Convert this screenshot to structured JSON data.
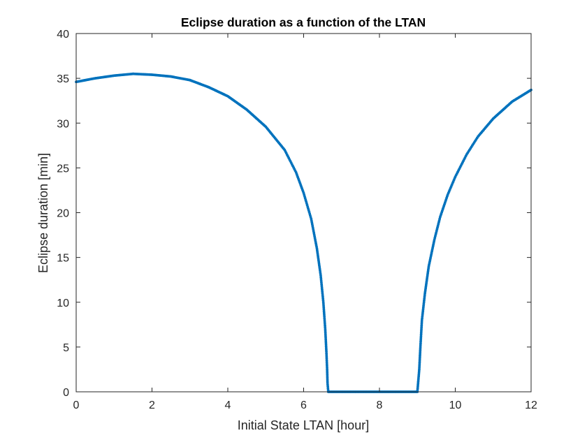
{
  "chart_data": {
    "type": "scatter",
    "title": "Eclipse duration as a function of the LTAN",
    "xlabel": "Initial State LTAN [hour]",
    "ylabel": "Eclipse duration [min]",
    "xlim": [
      0,
      12
    ],
    "ylim": [
      0,
      40
    ],
    "xticks": [
      0,
      2,
      4,
      6,
      8,
      10,
      12
    ],
    "yticks": [
      0,
      5,
      10,
      15,
      20,
      25,
      30,
      35,
      40
    ],
    "grid": false,
    "marker_color": "#0072BD",
    "series": [
      {
        "points": [
          [
            0.0,
            34.6
          ],
          [
            0.5,
            35.0
          ],
          [
            1.0,
            35.3
          ],
          [
            1.5,
            35.5
          ],
          [
            2.0,
            35.4
          ],
          [
            2.5,
            35.2
          ],
          [
            3.0,
            34.8
          ],
          [
            3.5,
            34.0
          ],
          [
            4.0,
            33.0
          ],
          [
            4.5,
            31.5
          ],
          [
            5.0,
            29.6
          ],
          [
            5.5,
            27.0
          ],
          [
            5.8,
            24.5
          ],
          [
            6.0,
            22.2
          ],
          [
            6.2,
            19.3
          ],
          [
            6.35,
            16.0
          ],
          [
            6.45,
            13.0
          ],
          [
            6.52,
            10.0
          ],
          [
            6.57,
            7.0
          ],
          [
            6.6,
            4.5
          ],
          [
            6.62,
            2.5
          ],
          [
            6.63,
            1.0
          ],
          [
            6.65,
            0.0
          ],
          [
            7.0,
            0.0
          ],
          [
            7.5,
            0.0
          ],
          [
            8.0,
            0.0
          ],
          [
            8.5,
            0.0
          ],
          [
            9.0,
            0.0
          ],
          [
            9.05,
            2.5
          ],
          [
            9.08,
            5.0
          ],
          [
            9.12,
            8.0
          ],
          [
            9.2,
            11.0
          ],
          [
            9.3,
            14.0
          ],
          [
            9.45,
            17.0
          ],
          [
            9.6,
            19.5
          ],
          [
            9.8,
            22.0
          ],
          [
            10.0,
            24.0
          ],
          [
            10.3,
            26.5
          ],
          [
            10.6,
            28.5
          ],
          [
            11.0,
            30.5
          ],
          [
            11.5,
            32.4
          ],
          [
            12.0,
            33.7
          ]
        ]
      }
    ]
  }
}
